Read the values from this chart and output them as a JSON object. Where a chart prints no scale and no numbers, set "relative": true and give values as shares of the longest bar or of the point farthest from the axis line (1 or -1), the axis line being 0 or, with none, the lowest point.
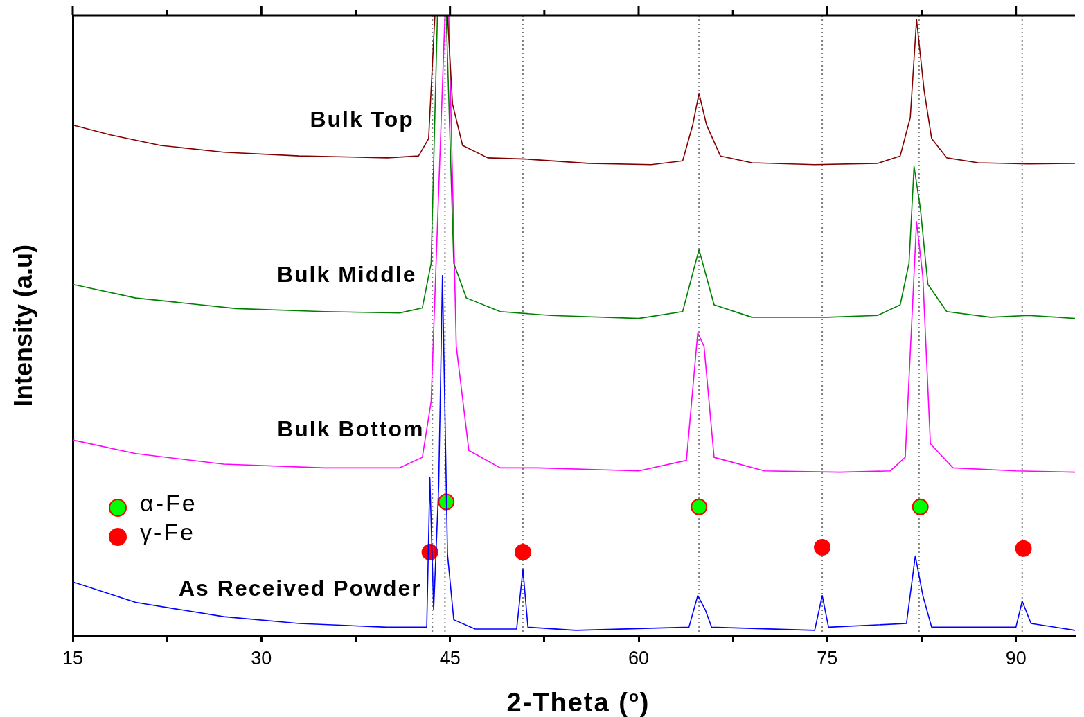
{
  "chart_data": {
    "type": "line",
    "relative": true,
    "xlabel": "2-Theta ($^{o}$)",
    "ylabel": "Intensity (a.u)",
    "xlim": [
      15,
      94.7
    ],
    "xticks": [
      15,
      {
        "value": 22.5,
        "label": null
      },
      30,
      {
        "value": 37.5,
        "label": null
      },
      45,
      {
        "value": 52.5,
        "label": null
      },
      60,
      {
        "value": 67.5,
        "label": null
      },
      75,
      {
        "value": 82.5,
        "label": null
      },
      90
    ],
    "tick_labels": "x",
    "grid": false,
    "legend": "bottom left",
    "ref_lines": [
      {
        "axis": "x",
        "value": 43.6,
        "color": "#808080",
        "line_style": "dotted"
      },
      {
        "axis": "x",
        "value": 44.6,
        "color": "#808080",
        "line_style": "dotted"
      },
      {
        "axis": "x",
        "value": 50.8,
        "color": "#808080",
        "line_style": "dotted"
      },
      {
        "axis": "x",
        "value": 64.8,
        "color": "#808080",
        "line_style": "dotted"
      },
      {
        "axis": "x",
        "value": 74.6,
        "color": "#808080",
        "line_style": "dotted"
      },
      {
        "axis": "x",
        "value": 82.3,
        "color": "#808080",
        "line_style": "dotted"
      },
      {
        "axis": "x",
        "value": 90.5,
        "color": "#808080",
        "line_style": "dotted"
      }
    ],
    "series": [
      {
        "name": "Bulk Top",
        "color": "#800000",
        "x": [
          15,
          18,
          22,
          27,
          33,
          40,
          42.5,
          43.3,
          43.8,
          44.8,
          45.2,
          46,
          48,
          51,
          56,
          61,
          63.5,
          64.3,
          64.8,
          65.4,
          66.5,
          69,
          74,
          79,
          80.8,
          81.6,
          82.1,
          82.7,
          83.3,
          84.5,
          87,
          91,
          94.7
        ],
        "values": [
          0.823,
          0.807,
          0.79,
          0.779,
          0.773,
          0.77,
          0.773,
          0.801,
          1.0,
          1.0,
          0.857,
          0.79,
          0.77,
          0.768,
          0.761,
          0.759,
          0.765,
          0.823,
          0.874,
          0.823,
          0.773,
          0.762,
          0.759,
          0.761,
          0.773,
          0.835,
          0.993,
          0.879,
          0.801,
          0.77,
          0.762,
          0.76,
          0.761
        ]
      },
      {
        "name": "Bulk Middle",
        "color": "#008000",
        "x": [
          15,
          20,
          28,
          35,
          41,
          42.8,
          43.5,
          44.0,
          44.7,
          45.3,
          46.3,
          49,
          53,
          60,
          63.5,
          64.8,
          66,
          69,
          75,
          79,
          80.8,
          81.5,
          81.9,
          82.4,
          83,
          84.5,
          88,
          91,
          94.7
        ],
        "values": [
          0.566,
          0.544,
          0.527,
          0.522,
          0.52,
          0.528,
          0.6,
          1.0,
          1.0,
          0.6,
          0.544,
          0.522,
          0.516,
          0.511,
          0.522,
          0.622,
          0.533,
          0.513,
          0.513,
          0.516,
          0.533,
          0.6,
          0.756,
          0.689,
          0.566,
          0.522,
          0.513,
          0.516,
          0.511
        ]
      },
      {
        "name": "Bulk Bottom",
        "color": "#ff00ff",
        "x": [
          15,
          20,
          27,
          35,
          41,
          42.8,
          43.5,
          44.6,
          44.9,
          45.5,
          46.5,
          49,
          52,
          60,
          63.8,
          64.7,
          65.2,
          66,
          70,
          76,
          80,
          81.2,
          82.1,
          82.6,
          83.2,
          85,
          90,
          94.7
        ],
        "values": [
          0.315,
          0.293,
          0.276,
          0.27,
          0.27,
          0.287,
          0.377,
          1.0,
          1.0,
          0.466,
          0.298,
          0.27,
          0.27,
          0.265,
          0.282,
          0.488,
          0.466,
          0.287,
          0.265,
          0.263,
          0.265,
          0.287,
          0.667,
          0.578,
          0.309,
          0.27,
          0.265,
          0.263
        ]
      },
      {
        "name": "As Received Powder",
        "color": "#0000ff",
        "x": [
          15,
          20,
          27,
          33,
          40,
          43.15,
          43.4,
          43.7,
          44.1,
          44.4,
          44.8,
          45.3,
          47,
          50.3,
          50.8,
          51.2,
          55,
          64,
          64.7,
          65.3,
          65.8,
          74,
          74.6,
          75.1,
          81.3,
          82,
          82.6,
          83.3,
          90,
          90.5,
          91.2,
          94.7
        ],
        "values": [
          0.086,
          0.053,
          0.03,
          0.019,
          0.013,
          0.013,
          0.254,
          0.041,
          0.24,
          0.58,
          0.131,
          0.025,
          0.01,
          0.01,
          0.106,
          0.013,
          0.008,
          0.013,
          0.064,
          0.041,
          0.013,
          0.008,
          0.064,
          0.013,
          0.019,
          0.128,
          0.064,
          0.013,
          0.013,
          0.055,
          0.019,
          0.008
        ]
      },
      {
        "name": "α-Fe",
        "type": "scatter",
        "color": "#00ff00",
        "marker": "circle",
        "x": [
          44.7,
          64.8,
          82.4
        ],
        "values": [
          0.215,
          0.207,
          0.207
        ]
      },
      {
        "name": "γ-Fe",
        "type": "scatter",
        "color": "#ff0000",
        "marker": "circle",
        "x": [
          43.4,
          50.8,
          74.6,
          90.6
        ],
        "values": [
          0.134,
          0.134,
          0.142,
          0.14
        ]
      }
    ]
  }
}
